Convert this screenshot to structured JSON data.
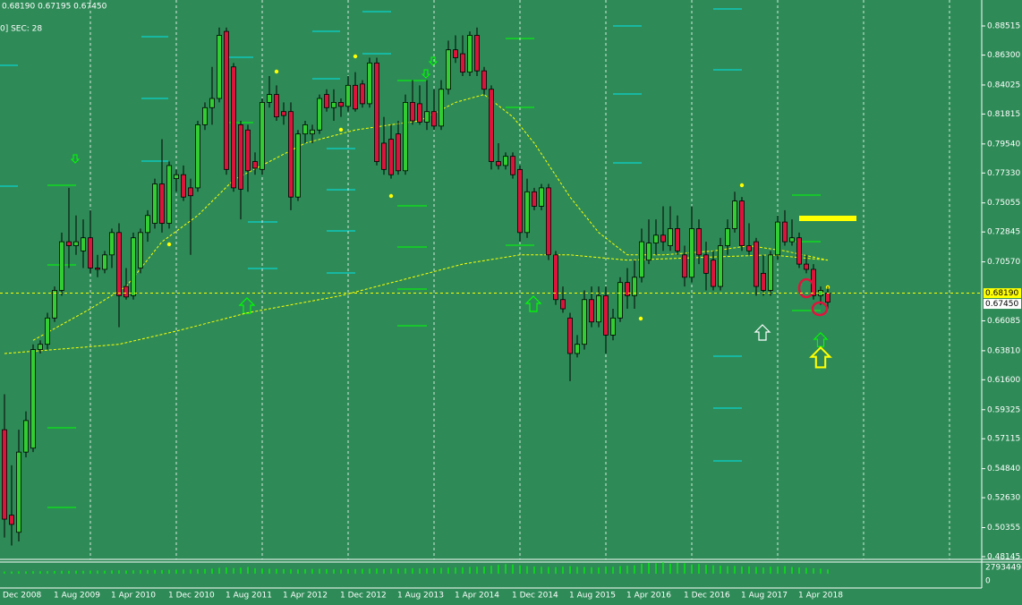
{
  "chart_data": {
    "type": "candlestick",
    "header": "0.68190 0.67195 0.67450",
    "subheader": "0] SEC: 28",
    "up_color": "#32cd32",
    "down_color": "#dc143c",
    "wick_color": "#000000",
    "ylim": [
      0.48145,
      0.88515
    ],
    "yticks": [
      0.88515,
      {
        "value": 0.863,
        "label": "0.86300"
      },
      0.84025,
      0.81815,
      {
        "value": 0.7954,
        "label": "0.79540"
      },
      {
        "value": 0.7733,
        "label": "0.77330"
      },
      0.75055,
      0.72845,
      {
        "value": 0.7057,
        "label": "0.70570"
      },
      0.66085,
      {
        "value": 0.6381,
        "label": "0.63810"
      },
      {
        "value": 0.616,
        "label": "0.61600"
      },
      0.59325,
      0.57115,
      {
        "value": 0.5484,
        "label": "0.54840"
      },
      {
        "value": 0.5263,
        "label": "0.52630"
      },
      0.50355,
      0.48145
    ],
    "xticks": [
      "Dec 2008",
      "1 Aug 2009",
      "1 Apr 2010",
      "1 Dec 2010",
      "1 Aug 2011",
      "1 Apr 2012",
      "1 Dec 2012",
      "1 Aug 2013",
      "1 Apr 2014",
      "1 Dec 2014",
      "1 Aug 2015",
      "1 Apr 2016",
      "1 Dec 2016",
      "1 Aug 2017",
      "1 Apr 2018"
    ],
    "grid": true,
    "open": [
      0.578,
      0.513,
      0.5,
      0.561,
      0.564,
      0.639,
      0.643,
      0.663,
      0.684,
      0.721,
      0.718,
      0.714,
      0.724,
      0.701,
      0.7,
      0.711,
      0.728,
      0.687,
      0.68,
      0.701,
      0.728,
      0.735,
      0.765,
      0.735,
      0.769,
      0.772,
      0.762,
      0.762,
      0.81,
      0.823,
      0.83,
      0.881,
      0.854,
      0.81,
      0.806,
      0.782,
      0.776,
      0.827,
      0.833,
      0.82,
      0.82,
      0.755,
      0.803,
      0.803,
      0.806,
      0.833,
      0.823,
      0.827,
      0.824,
      0.84,
      0.841,
      0.826,
      0.857,
      0.796,
      0.799,
      0.803,
      0.775,
      0.827,
      0.826,
      0.812,
      0.82,
      0.809,
      0.837,
      0.867,
      0.864,
      0.85,
      0.878,
      0.851,
      0.837,
      0.782,
      0.779,
      0.786,
      0.776,
      0.728,
      0.759,
      0.748,
      0.762,
      0.711,
      0.677,
      0.663,
      0.636,
      0.643,
      0.677,
      0.66,
      0.68,
      0.65,
      0.663,
      0.69,
      0.68,
      0.694,
      0.707,
      0.72,
      0.726,
      0.718,
      0.731,
      0.711,
      0.694,
      0.731,
      0.711,
      0.707,
      0.687,
      0.718,
      0.731,
      0.752,
      0.718,
      0.721,
      0.697,
      0.684,
      0.711,
      0.736,
      0.721,
      0.724,
      0.704,
      0.7,
      0.68,
      0.682
    ],
    "high": [
      0.605,
      0.551,
      0.578,
      0.592,
      0.643,
      0.646,
      0.667,
      0.687,
      0.728,
      0.762,
      0.741,
      0.738,
      0.745,
      0.711,
      0.714,
      0.731,
      0.735,
      0.701,
      0.728,
      0.731,
      0.745,
      0.769,
      0.799,
      0.782,
      0.776,
      0.779,
      0.769,
      0.813,
      0.827,
      0.854,
      0.884,
      0.884,
      0.857,
      0.813,
      0.81,
      0.789,
      0.83,
      0.847,
      0.84,
      0.827,
      0.827,
      0.806,
      0.813,
      0.81,
      0.833,
      0.837,
      0.837,
      0.83,
      0.847,
      0.85,
      0.844,
      0.861,
      0.861,
      0.816,
      0.81,
      0.813,
      0.833,
      0.844,
      0.84,
      0.844,
      0.837,
      0.844,
      0.874,
      0.878,
      0.878,
      0.881,
      0.884,
      0.854,
      0.84,
      0.796,
      0.789,
      0.789,
      0.779,
      0.769,
      0.762,
      0.765,
      0.765,
      0.714,
      0.687,
      0.667,
      0.65,
      0.684,
      0.687,
      0.687,
      0.687,
      0.67,
      0.694,
      0.701,
      0.707,
      0.731,
      0.738,
      0.738,
      0.748,
      0.748,
      0.741,
      0.718,
      0.748,
      0.738,
      0.721,
      0.714,
      0.724,
      0.738,
      0.759,
      0.755,
      0.735,
      0.724,
      0.711,
      0.714,
      0.741,
      0.745,
      0.738,
      0.728,
      0.711,
      0.704,
      0.687,
      0.687
    ],
    "low": [
      0.496,
      0.49,
      0.493,
      0.557,
      0.561,
      0.636,
      0.639,
      0.66,
      0.68,
      0.701,
      0.711,
      0.701,
      0.697,
      0.694,
      0.697,
      0.701,
      0.656,
      0.677,
      0.677,
      0.697,
      0.721,
      0.731,
      0.728,
      0.731,
      0.759,
      0.752,
      0.711,
      0.759,
      0.806,
      0.81,
      0.827,
      0.772,
      0.759,
      0.738,
      0.759,
      0.772,
      0.772,
      0.823,
      0.813,
      0.81,
      0.745,
      0.752,
      0.796,
      0.796,
      0.803,
      0.82,
      0.813,
      0.816,
      0.82,
      0.82,
      0.823,
      0.823,
      0.779,
      0.772,
      0.769,
      0.772,
      0.772,
      0.81,
      0.81,
      0.806,
      0.806,
      0.806,
      0.833,
      0.857,
      0.847,
      0.847,
      0.847,
      0.833,
      0.776,
      0.776,
      0.776,
      0.769,
      0.721,
      0.724,
      0.745,
      0.745,
      0.707,
      0.673,
      0.667,
      0.615,
      0.633,
      0.639,
      0.656,
      0.656,
      0.636,
      0.646,
      0.66,
      0.67,
      0.67,
      0.69,
      0.704,
      0.711,
      0.714,
      0.714,
      0.711,
      0.687,
      0.69,
      0.704,
      0.684,
      0.684,
      0.684,
      0.711,
      0.728,
      0.714,
      0.711,
      0.68,
      0.68,
      0.68,
      0.707,
      0.718,
      0.718,
      0.701,
      0.697,
      0.677,
      0.673,
      0.67
    ],
    "close": [
      0.51,
      0.506,
      0.561,
      0.585,
      0.639,
      0.643,
      0.663,
      0.684,
      0.721,
      0.718,
      0.721,
      0.724,
      0.701,
      0.7,
      0.711,
      0.728,
      0.68,
      0.679,
      0.724,
      0.728,
      0.741,
      0.765,
      0.735,
      0.779,
      0.772,
      0.755,
      0.756,
      0.81,
      0.823,
      0.83,
      0.878,
      0.776,
      0.762,
      0.761,
      0.775,
      0.777,
      0.827,
      0.833,
      0.816,
      0.817,
      0.755,
      0.803,
      0.81,
      0.806,
      0.83,
      0.823,
      0.827,
      0.824,
      0.84,
      0.822,
      0.826,
      0.857,
      0.782,
      0.776,
      0.772,
      0.775,
      0.827,
      0.813,
      0.812,
      0.82,
      0.809,
      0.837,
      0.867,
      0.861,
      0.85,
      0.878,
      0.851,
      0.837,
      0.782,
      0.779,
      0.786,
      0.772,
      0.728,
      0.759,
      0.748,
      0.762,
      0.711,
      0.677,
      0.67,
      0.636,
      0.643,
      0.677,
      0.66,
      0.68,
      0.65,
      0.663,
      0.69,
      0.68,
      0.694,
      0.721,
      0.72,
      0.726,
      0.721,
      0.731,
      0.714,
      0.694,
      0.731,
      0.711,
      0.697,
      0.687,
      0.718,
      0.731,
      0.752,
      0.718,
      0.714,
      0.687,
      0.684,
      0.711,
      0.736,
      0.721,
      0.724,
      0.704,
      0.7,
      0.68,
      0.684,
      0.675
    ],
    "lines": [
      {
        "color": "#ffff00",
        "x": [
          0,
          7,
          16,
          24,
          34,
          47,
          57,
          64,
          72,
          79,
          87,
          97,
          107,
          115
        ],
        "values": [
          0.636,
          0.639,
          0.643,
          0.653,
          0.667,
          0.68,
          0.694,
          0.704,
          0.711,
          0.711,
          0.707,
          0.709,
          0.711,
          0.707
        ]
      },
      {
        "color": "#ffff00",
        "x": [
          4,
          12,
          17,
          22,
          27,
          32,
          37,
          42,
          49,
          54,
          58,
          63,
          67,
          71,
          74,
          79,
          83,
          87,
          92,
          99,
          104,
          109,
          115
        ],
        "values": [
          0.646,
          0.67,
          0.687,
          0.721,
          0.741,
          0.768,
          0.782,
          0.796,
          0.806,
          0.81,
          0.813,
          0.827,
          0.833,
          0.816,
          0.796,
          0.755,
          0.728,
          0.711,
          0.711,
          0.714,
          0.718,
          0.714,
          0.707
        ]
      }
    ],
    "price_lines": [
      {
        "value": 0.6819,
        "label": "0.68190",
        "color": "#ffff00",
        "line": true
      },
      {
        "value": 0.6745,
        "label": "0.67450",
        "color": "#ffffff",
        "line": false
      }
    ],
    "volume": {
      "color": "#00ff00",
      "ylim": [
        0,
        2793449
      ],
      "yticks": [
        2793449,
        0
      ],
      "values": [
        500000,
        520000,
        560000,
        540000,
        600000,
        580000,
        620000,
        650000,
        700000,
        680000,
        720000,
        690000,
        740000,
        760000,
        710000,
        780000,
        800000,
        750000,
        820000,
        860000,
        880000,
        900000,
        850000,
        920000,
        950000,
        1000000,
        980000,
        1050000,
        1100000,
        1200000,
        1400000,
        1500000,
        1350000,
        1450000,
        1600000,
        1300000,
        1250000,
        1200000,
        1150000,
        1100000,
        1050000,
        1000000,
        1080000,
        1120000,
        1150000,
        1090000,
        1030000,
        1000000,
        1060000,
        1100000,
        1150000,
        1200000,
        1250000,
        1100000,
        1180000,
        1220000,
        1280000,
        1300000,
        1260000,
        1320000,
        1350000,
        1400000,
        1450000,
        1500000,
        1550000,
        1600000,
        1650000,
        1700000,
        1900000,
        2100000,
        2300000,
        2200000,
        2000000,
        1800000,
        1700000,
        1650000,
        1600000,
        1550000,
        1700000,
        1800000,
        1650000,
        1600000,
        1550000,
        1500000,
        1700000,
        1650000,
        1800000,
        1900000,
        2000000,
        2400000,
        2600000,
        2500000,
        2793449,
        2400000,
        2600000,
        2500000,
        2200000,
        2300000,
        2100000,
        2000000,
        1900000,
        1800000,
        1850000,
        1700000,
        1750000,
        1600000,
        1500000,
        1650000,
        1700000,
        1800000,
        1600000,
        1500000,
        1400000,
        1300000,
        1200000,
        1000000
      ]
    }
  }
}
